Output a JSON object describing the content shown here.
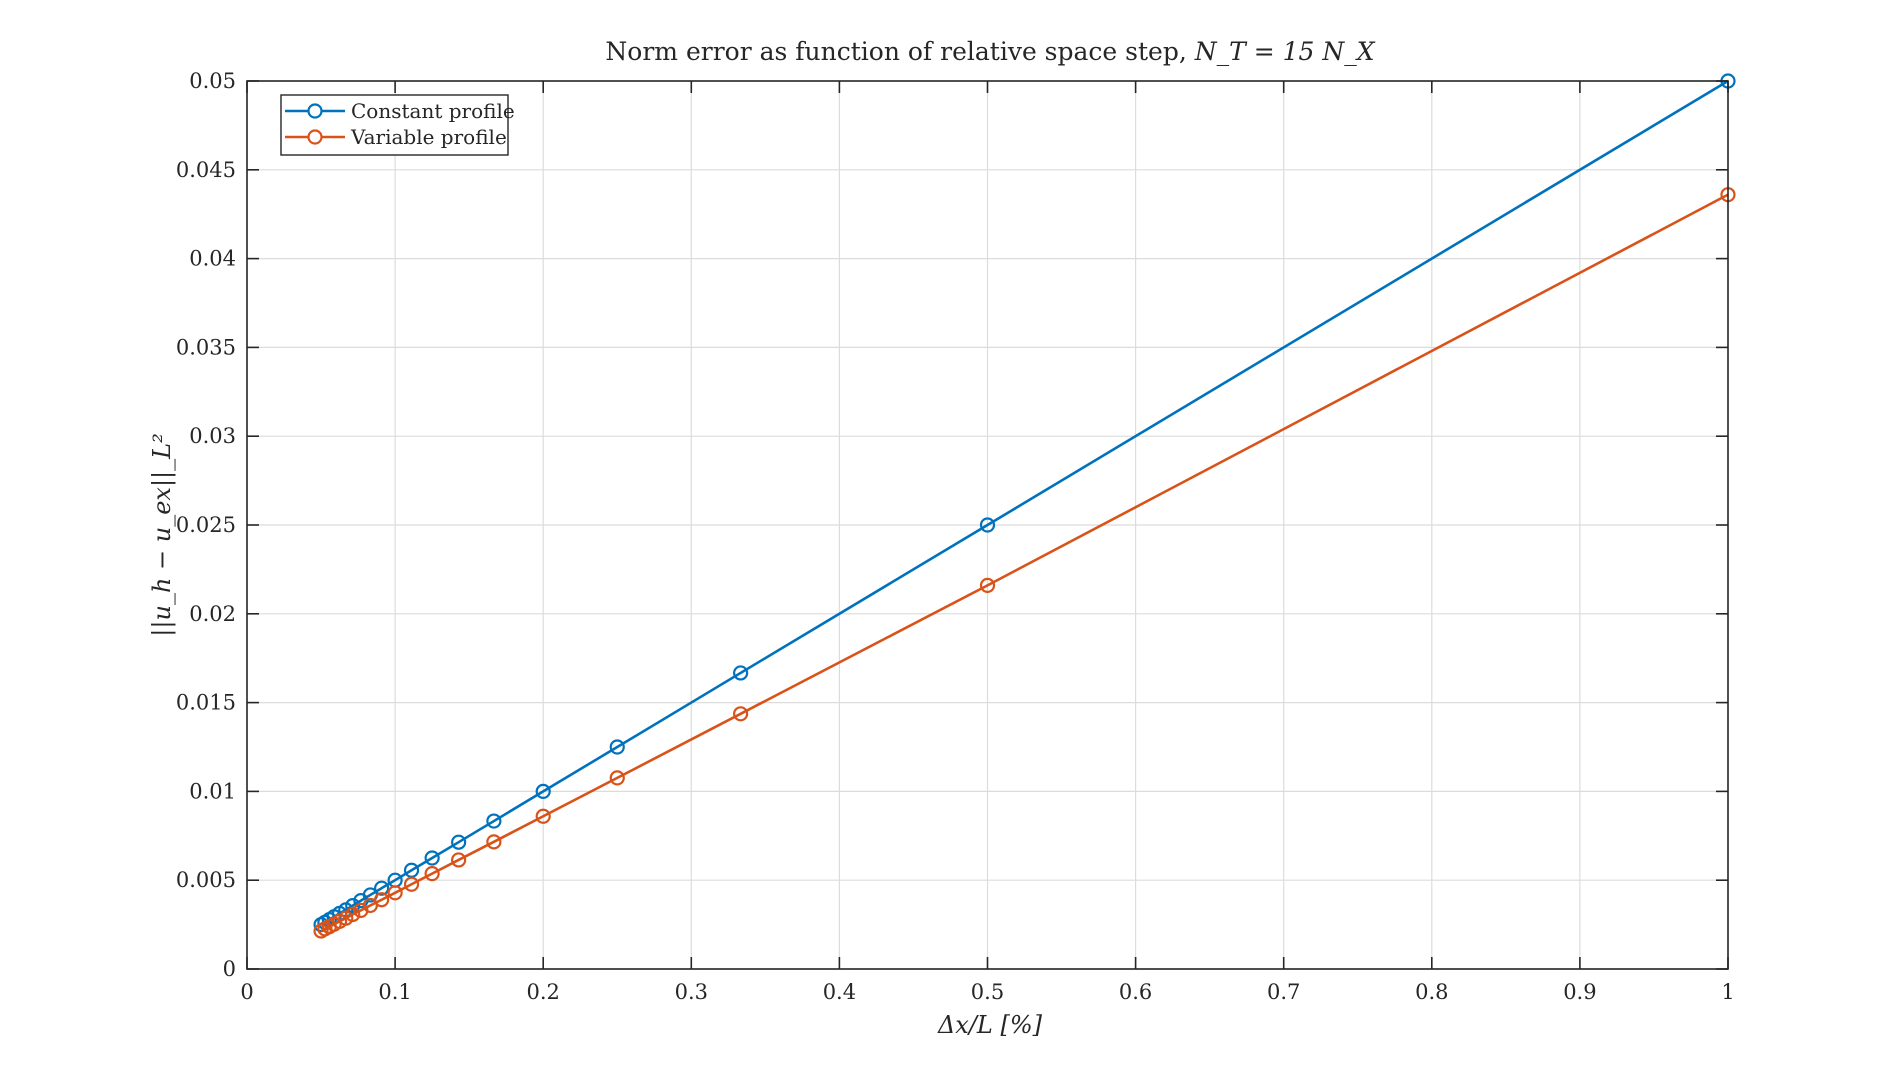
{
  "chart_data": {
    "type": "line",
    "title": "Norm error as function of relative space step, N_T = 15 N_X",
    "title_parts": {
      "text": "Norm error as function of relative space step, ",
      "math": "N_T = 15 N_X"
    },
    "xlabel": "Δx/L [%]",
    "ylabel": "||u_h − u_ex||_L²",
    "xlim": [
      0,
      1
    ],
    "ylim": [
      0,
      0.05
    ],
    "xticks": [
      0,
      0.1,
      0.2,
      0.3,
      0.4,
      0.5,
      0.6,
      0.7,
      0.8,
      0.9,
      1
    ],
    "xtick_labels": [
      "0",
      "0.1",
      "0.2",
      "0.3",
      "0.4",
      "0.5",
      "0.6",
      "0.7",
      "0.8",
      "0.9",
      "1"
    ],
    "yticks": [
      0,
      0.005,
      0.01,
      0.015,
      0.02,
      0.025,
      0.03,
      0.035,
      0.04,
      0.045,
      0.05
    ],
    "ytick_labels": [
      "0",
      "0.005",
      "0.01",
      "0.015",
      "0.02",
      "0.025",
      "0.03",
      "0.035",
      "0.04",
      "0.045",
      "0.05"
    ],
    "grid": true,
    "legend_position": "top-left",
    "x": [
      1,
      0.5,
      0.3333,
      0.25,
      0.2,
      0.1667,
      0.1429,
      0.125,
      0.1111,
      0.1,
      0.0909,
      0.0833,
      0.0769,
      0.0714,
      0.0667,
      0.0625,
      0.0588,
      0.0556,
      0.0526,
      0.05
    ],
    "series": [
      {
        "name": "Constant profile",
        "color": "#0072BD",
        "marker": "circle",
        "values": [
          0.05,
          0.025,
          0.01667,
          0.0125,
          0.01,
          0.00833,
          0.00714,
          0.00625,
          0.00556,
          0.005,
          0.00455,
          0.00417,
          0.00385,
          0.00357,
          0.00333,
          0.00313,
          0.00294,
          0.00278,
          0.00263,
          0.0025
        ]
      },
      {
        "name": "Variable profile",
        "color": "#D95319",
        "marker": "circle",
        "values": [
          0.0436,
          0.0216,
          0.01437,
          0.01076,
          0.0086,
          0.00716,
          0.00614,
          0.00537,
          0.00477,
          0.00429,
          0.0039,
          0.00358,
          0.0033,
          0.00307,
          0.00286,
          0.00268,
          0.00252,
          0.00238,
          0.00226,
          0.00214
        ]
      }
    ]
  }
}
